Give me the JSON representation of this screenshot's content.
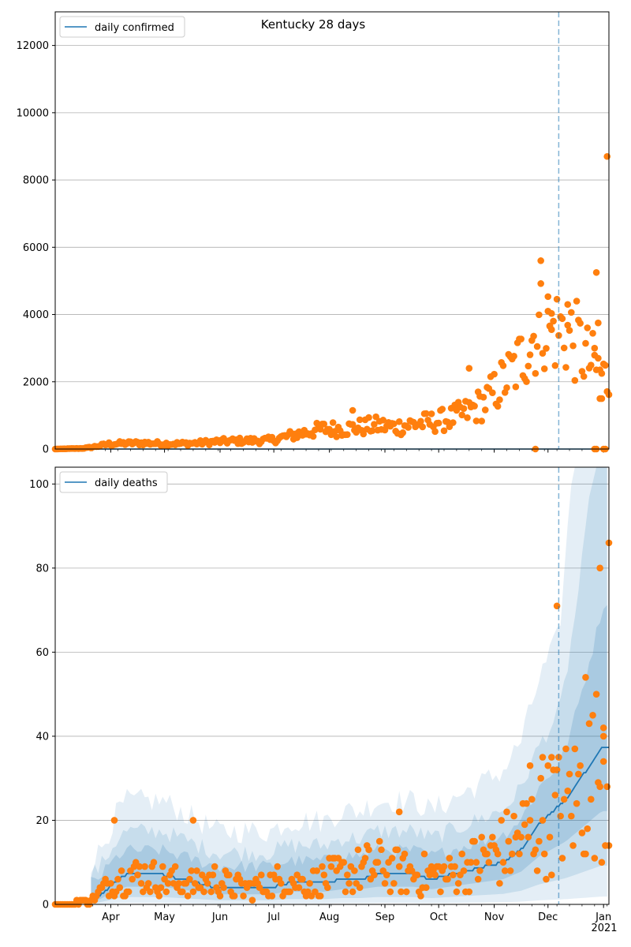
{
  "figure_title": "Kentucky 28 days",
  "colors": {
    "model": "#1f77b4",
    "observed": "#ff7f0e",
    "grid": "#b0b0b0",
    "band": "#1f77b4",
    "marker_line": "#1f77b4"
  },
  "x_axis": {
    "months": [
      {
        "label": "Apr",
        "day": 31
      },
      {
        "label": "May",
        "day": 61
      },
      {
        "label": "Jun",
        "day": 92
      },
      {
        "label": "Jul",
        "day": 122
      },
      {
        "label": "Aug",
        "day": 153
      },
      {
        "label": "Sep",
        "day": 184
      },
      {
        "label": "Oct",
        "day": 214
      },
      {
        "label": "Nov",
        "day": 245
      },
      {
        "label": "Dec",
        "day": 275
      },
      {
        "label": "Jan",
        "day": 306
      }
    ],
    "year_label": "2021",
    "range_days": [
      0,
      309
    ],
    "day_zero": "2020-03-01",
    "forecast_start_day": 281
  },
  "chart_data": [
    {
      "type": "scatter",
      "title": "Kentucky 28 days",
      "legend": [
        "daily confirmed"
      ],
      "legend_position": "top-left",
      "ylim": [
        0,
        13000
      ],
      "yticks": [
        0,
        2000,
        4000,
        6000,
        8000,
        10000,
        12000
      ],
      "grid": true,
      "model_series": {
        "name": "daily confirmed",
        "x": [
          0,
          309
        ],
        "values": [
          0,
          0
        ]
      },
      "observed_anchors": [
        [
          0,
          0
        ],
        [
          15,
          20
        ],
        [
          20,
          50
        ],
        [
          25,
          100
        ],
        [
          30,
          150
        ],
        [
          40,
          170
        ],
        [
          50,
          180
        ],
        [
          60,
          160
        ],
        [
          70,
          160
        ],
        [
          80,
          180
        ],
        [
          90,
          220
        ],
        [
          100,
          240
        ],
        [
          110,
          250
        ],
        [
          120,
          260
        ],
        [
          130,
          380
        ],
        [
          140,
          500
        ],
        [
          150,
          600
        ],
        [
          160,
          600
        ],
        [
          170,
          650
        ],
        [
          180,
          700
        ],
        [
          190,
          650
        ],
        [
          200,
          750
        ],
        [
          210,
          800
        ],
        [
          220,
          900
        ],
        [
          230,
          1100
        ],
        [
          240,
          1400
        ],
        [
          250,
          2000
        ],
        [
          258,
          2500
        ],
        [
          265,
          3200
        ],
        [
          272,
          3800
        ],
        [
          278,
          3600
        ],
        [
          285,
          3500
        ],
        [
          292,
          3100
        ],
        [
          298,
          2600
        ],
        [
          304,
          2300
        ],
        [
          309,
          2000
        ]
      ],
      "observed_outliers": [
        [
          271,
          5600
        ],
        [
          302,
          5250
        ],
        [
          308,
          8700
        ],
        [
          286,
          4300
        ],
        [
          275,
          4100
        ],
        [
          303,
          3750
        ],
        [
          276,
          3650
        ],
        [
          231,
          2400
        ],
        [
          301,
          3000
        ],
        [
          304,
          1500
        ],
        [
          305,
          1500
        ],
        [
          306,
          0
        ],
        [
          307,
          0
        ],
        [
          268,
          0
        ],
        [
          301,
          0
        ],
        [
          302,
          0
        ],
        [
          277,
          3550
        ],
        [
          166,
          1150
        ]
      ]
    },
    {
      "type": "scatter",
      "title": "",
      "legend": [
        "daily deaths"
      ],
      "legend_position": "top-left",
      "ylim": [
        0,
        104
      ],
      "yticks": [
        0,
        20,
        40,
        60,
        80,
        100
      ],
      "grid": true,
      "model_series": {
        "name": "daily deaths",
        "points": [
          [
            0,
            0
          ],
          [
            10,
            0
          ],
          [
            15,
            0.5
          ],
          [
            20,
            1
          ],
          [
            25,
            2
          ],
          [
            30,
            4
          ],
          [
            35,
            6
          ],
          [
            40,
            7
          ],
          [
            50,
            7
          ],
          [
            60,
            7
          ],
          [
            70,
            6
          ],
          [
            80,
            5
          ],
          [
            90,
            4
          ],
          [
            100,
            4
          ],
          [
            110,
            4
          ],
          [
            120,
            4
          ],
          [
            130,
            5
          ],
          [
            140,
            5
          ],
          [
            150,
            5
          ],
          [
            160,
            6
          ],
          [
            170,
            6
          ],
          [
            180,
            7
          ],
          [
            190,
            7
          ],
          [
            200,
            7
          ],
          [
            210,
            6
          ],
          [
            220,
            7
          ],
          [
            230,
            8
          ],
          [
            240,
            9
          ],
          [
            250,
            10
          ],
          [
            260,
            13
          ],
          [
            265,
            16
          ],
          [
            270,
            19
          ],
          [
            275,
            21
          ],
          [
            280,
            23
          ],
          [
            285,
            25
          ],
          [
            290,
            28
          ],
          [
            295,
            31
          ],
          [
            300,
            34
          ],
          [
            305,
            37
          ],
          [
            309,
            37
          ]
        ]
      },
      "observed_anchors": [
        [
          0,
          0
        ],
        [
          20,
          1
        ],
        [
          30,
          5
        ],
        [
          40,
          7
        ],
        [
          50,
          7
        ],
        [
          60,
          6
        ],
        [
          70,
          5
        ],
        [
          80,
          5
        ],
        [
          90,
          6
        ],
        [
          100,
          4
        ],
        [
          110,
          4
        ],
        [
          120,
          5
        ],
        [
          130,
          6
        ],
        [
          140,
          5
        ],
        [
          150,
          6
        ],
        [
          160,
          7
        ],
        [
          170,
          8
        ],
        [
          180,
          9
        ],
        [
          190,
          8
        ],
        [
          200,
          7
        ],
        [
          210,
          7
        ],
        [
          220,
          7
        ],
        [
          230,
          9
        ],
        [
          240,
          11
        ],
        [
          250,
          13
        ],
        [
          260,
          16
        ],
        [
          270,
          19
        ],
        [
          280,
          22
        ],
        [
          290,
          25
        ],
        [
          300,
          30
        ],
        [
          309,
          35
        ]
      ],
      "observed_outliers": [
        [
          280,
          71
        ],
        [
          304,
          80
        ],
        [
          309,
          86
        ],
        [
          296,
          54
        ],
        [
          306,
          42
        ],
        [
          306,
          40
        ],
        [
          33,
          20
        ],
        [
          77,
          20
        ],
        [
          192,
          22
        ],
        [
          265,
          33
        ],
        [
          272,
          35
        ],
        [
          277,
          35
        ]
      ]
    }
  ]
}
